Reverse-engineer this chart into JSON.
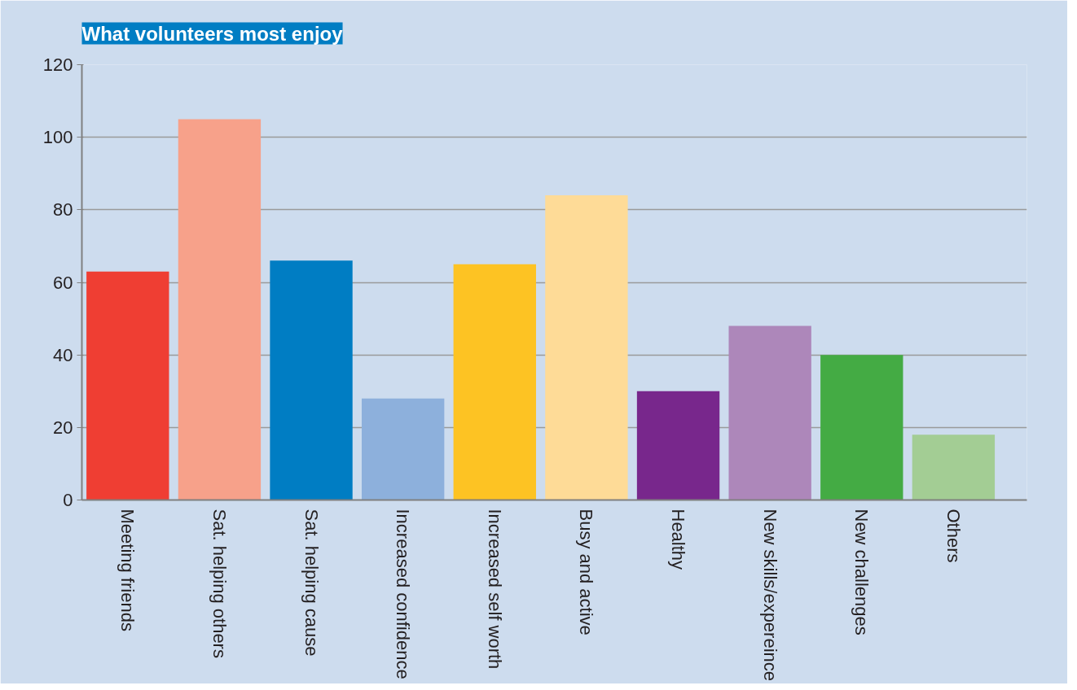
{
  "chart_data": {
    "type": "bar",
    "title": "What volunteers most enjoy",
    "categories": [
      "Meeting friends",
      "Sat. helping others",
      "Sat. helping cause",
      "Increased confidence",
      "Increased self worth",
      "Busy and active",
      "Healthy",
      "New skills/expereince",
      "New challenges",
      "Others"
    ],
    "values": [
      63,
      105,
      66,
      28,
      65,
      84,
      30,
      48,
      40,
      18
    ],
    "colors": [
      "#ef3e33",
      "#f7a18a",
      "#007dc3",
      "#8db0dc",
      "#fdc323",
      "#fedb97",
      "#78278c",
      "#ad87ba",
      "#44ab44",
      "#a3cd94"
    ],
    "ylim": [
      0,
      120
    ],
    "yticks": [
      0,
      20,
      40,
      60,
      80,
      100,
      120
    ],
    "grid": "y"
  }
}
